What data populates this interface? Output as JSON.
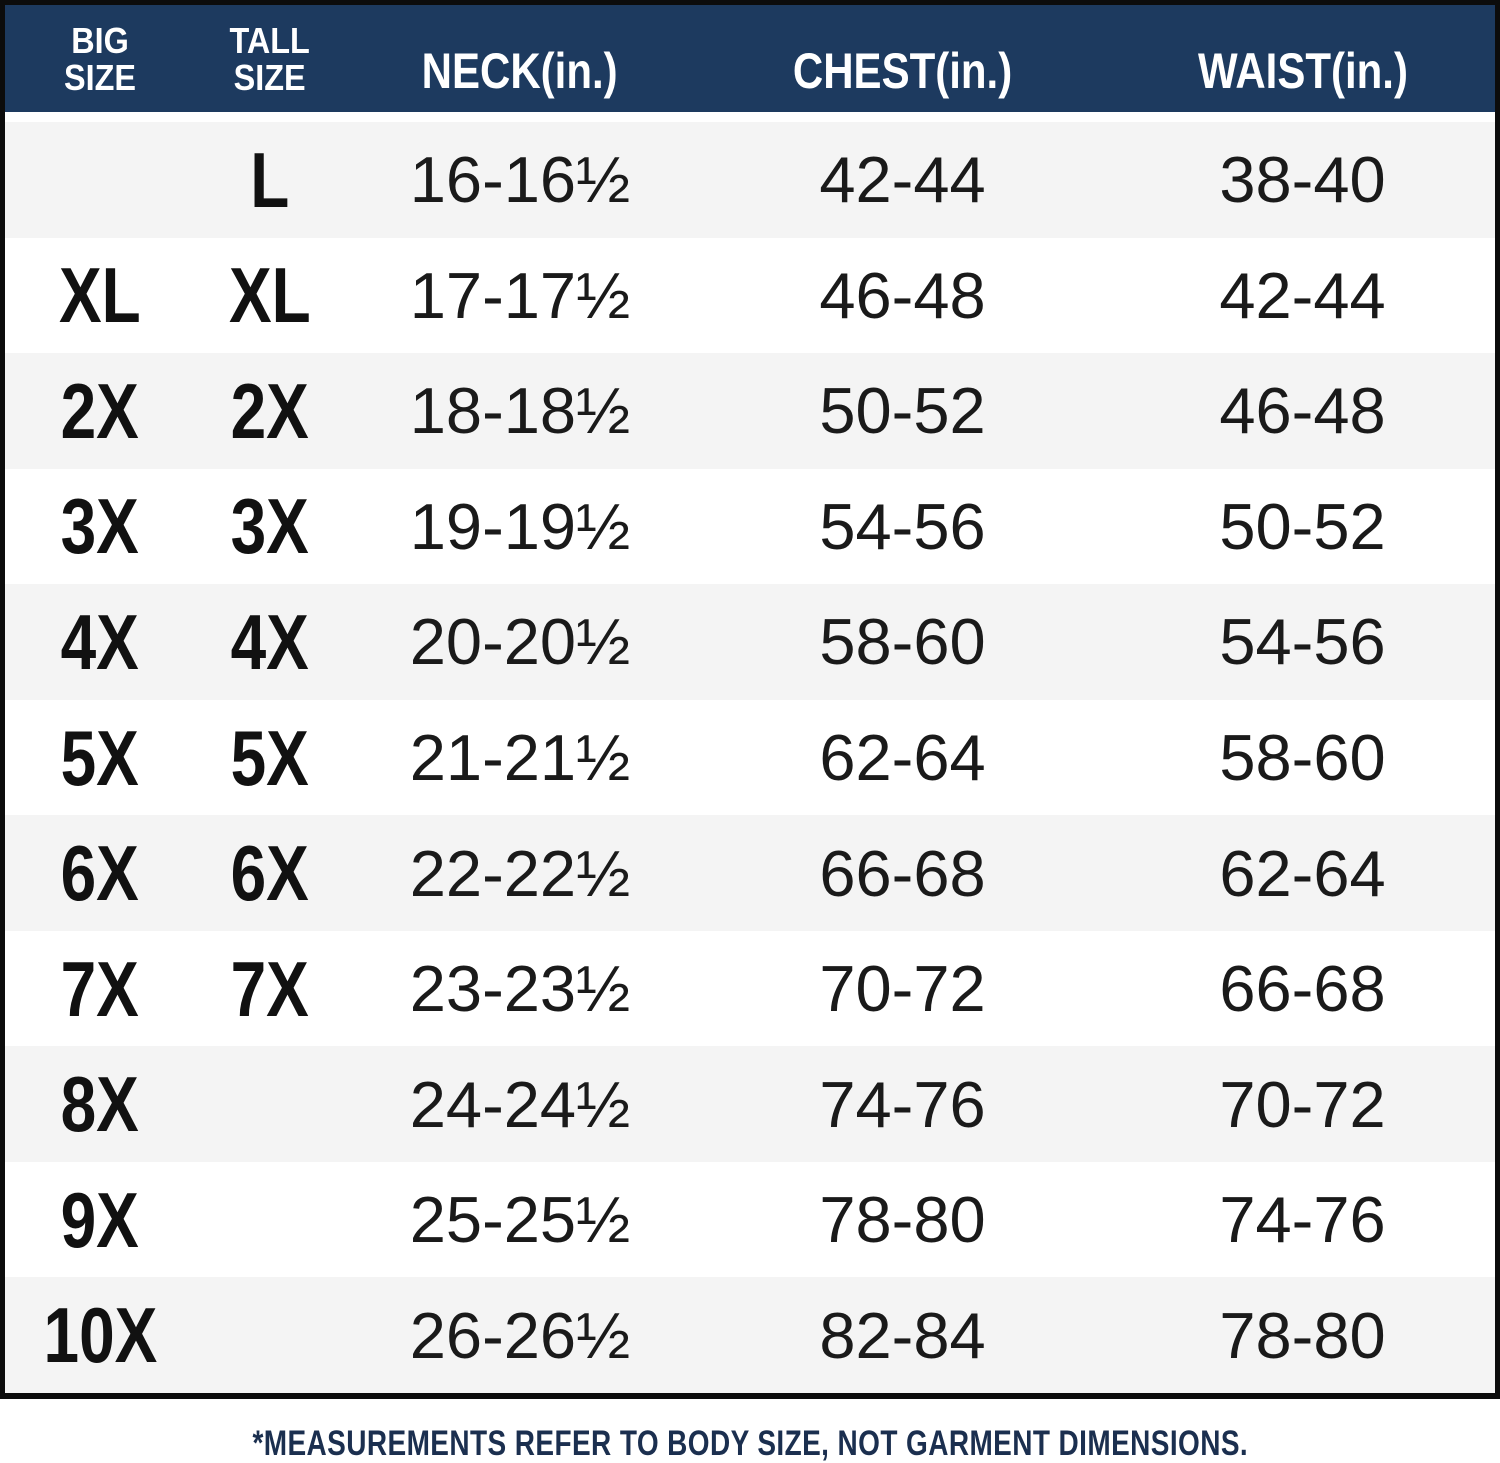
{
  "colors": {
    "header_bg": "#1d3a5f",
    "frame_border": "#0c0c0c",
    "row_alternate": "#f4f4f4",
    "row_plain": "#ffffff",
    "value_text": "#1a1a1a",
    "header_text": "#ffffff",
    "footnote_text": "#1b2f4f"
  },
  "chart_data": {
    "type": "table",
    "columns": [
      "BIG\nSIZE",
      "TALL\nSIZE",
      "NECK(in.)",
      "CHEST(in.)",
      "WAIST(in.)"
    ],
    "rows": [
      {
        "big": "",
        "tall": "L",
        "neck": "16-16½",
        "chest": "42-44",
        "waist": "38-40"
      },
      {
        "big": "XL",
        "tall": "XL",
        "neck": "17-17½",
        "chest": "46-48",
        "waist": "42-44"
      },
      {
        "big": "2X",
        "tall": "2X",
        "neck": "18-18½",
        "chest": "50-52",
        "waist": "46-48"
      },
      {
        "big": "3X",
        "tall": "3X",
        "neck": "19-19½",
        "chest": "54-56",
        "waist": "50-52"
      },
      {
        "big": "4X",
        "tall": "4X",
        "neck": "20-20½",
        "chest": "58-60",
        "waist": "54-56"
      },
      {
        "big": "5X",
        "tall": "5X",
        "neck": "21-21½",
        "chest": "62-64",
        "waist": "58-60"
      },
      {
        "big": "6X",
        "tall": "6X",
        "neck": "22-22½",
        "chest": "66-68",
        "waist": "62-64"
      },
      {
        "big": "7X",
        "tall": "7X",
        "neck": "23-23½",
        "chest": "70-72",
        "waist": "66-68"
      },
      {
        "big": "8X",
        "tall": "",
        "neck": "24-24½",
        "chest": "74-76",
        "waist": "70-72"
      },
      {
        "big": "9X",
        "tall": "",
        "neck": "25-25½",
        "chest": "78-80",
        "waist": "74-76"
      },
      {
        "big": "10X",
        "tall": "",
        "neck": "26-26½",
        "chest": "82-84",
        "waist": "78-80"
      }
    ],
    "footnote": "*MEASUREMENTS REFER TO BODY SIZE, NOT GARMENT DIMENSIONS."
  }
}
